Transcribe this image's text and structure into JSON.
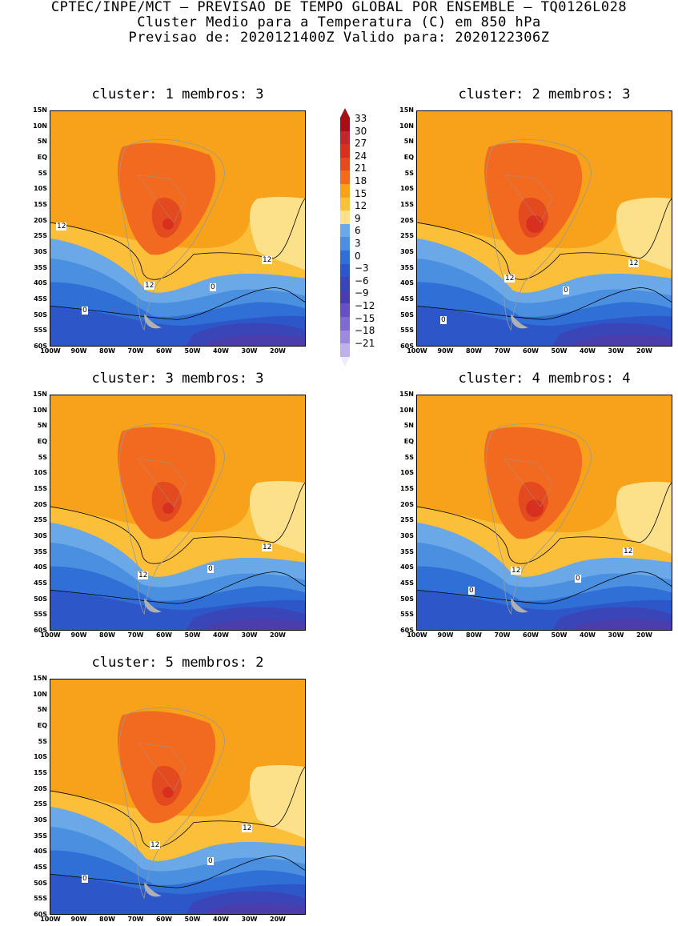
{
  "header": {
    "line1": "CPTEC/INPE/MCT – PREVISAO DE TEMPO GLOBAL POR ENSEMBLE – TQ0126L028",
    "line2": "Cluster Medio para a Temperatura (C) em 850 hPa",
    "line3": "Previsao de: 2020121400Z   Valido para: 2020122306Z"
  },
  "panels": [
    {
      "title": "cluster: 1  membros: 3",
      "labels": [
        "12",
        "12",
        "12",
        "0",
        "0"
      ]
    },
    {
      "title": "cluster: 2  membros: 3",
      "labels": [
        "12",
        "12",
        "0",
        "0"
      ]
    },
    {
      "title": "cluster: 3  membros: 3",
      "labels": [
        "12",
        "12",
        "0"
      ]
    },
    {
      "title": "cluster: 4  membros: 4",
      "labels": [
        "12",
        "12",
        "0",
        "0"
      ]
    },
    {
      "title": "cluster: 5  membros: 2",
      "labels": [
        "12",
        "12",
        "0",
        "0"
      ]
    }
  ],
  "lat_ticks": [
    "15N",
    "10N",
    "5N",
    "EQ",
    "5S",
    "10S",
    "15S",
    "20S",
    "25S",
    "30S",
    "35S",
    "40S",
    "45S",
    "50S",
    "55S",
    "60S"
  ],
  "lon_ticks": [
    "100W",
    "90W",
    "80W",
    "70W",
    "60W",
    "50W",
    "40W",
    "30W",
    "20W"
  ],
  "colorbar": {
    "labels": [
      "33",
      "30",
      "27",
      "24",
      "21",
      "18",
      "15",
      "12",
      "9",
      "6",
      "3",
      "0",
      "−3",
      "−6",
      "−9",
      "−12",
      "−15",
      "−18",
      "−21"
    ],
    "colors": [
      "#a50f15",
      "#c0272d",
      "#d7301f",
      "#e34a1f",
      "#f26a1f",
      "#f7a21a",
      "#fbbf3a",
      "#fde08a",
      "#6aa8e8",
      "#4a8fe0",
      "#2f6fd6",
      "#2d57c9",
      "#3a45b8",
      "#4b3dac",
      "#6650c2",
      "#7e6bd0",
      "#9d8ade",
      "#bfb0ec",
      "#ddd5f5"
    ],
    "top_arrow": "#a50f15",
    "bottom_arrow": "#efeafc"
  }
}
